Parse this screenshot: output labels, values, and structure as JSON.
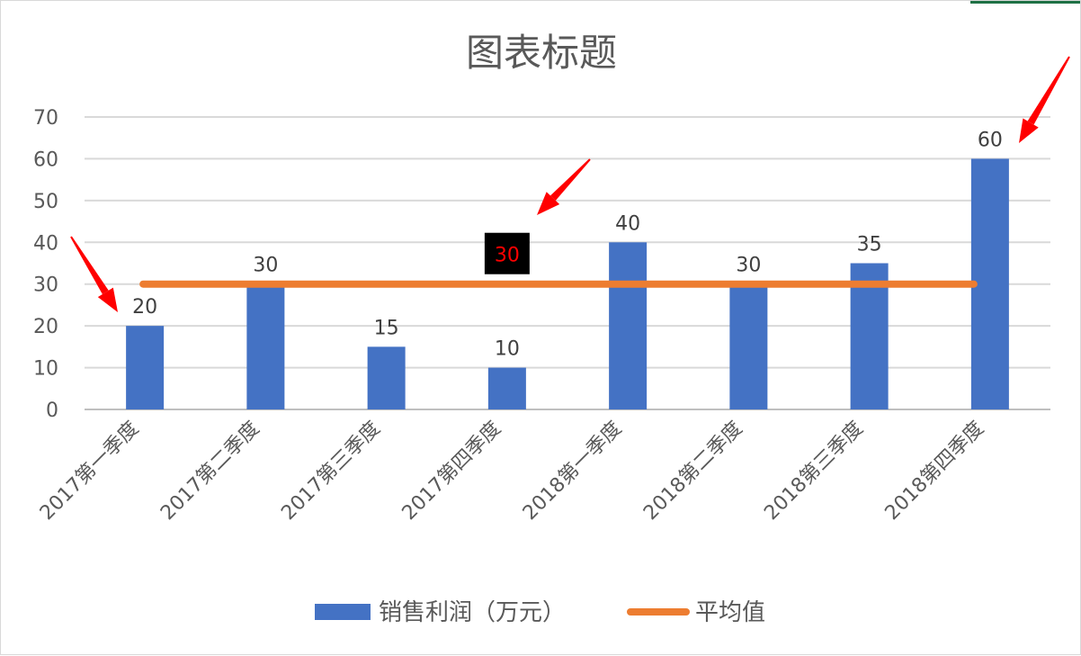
{
  "chart_data": {
    "type": "bar",
    "title": "图表标题",
    "categories": [
      "2017第一季度",
      "2017第二季度",
      "2017第三季度",
      "2017第四季度",
      "2018第一季度",
      "2018第二季度",
      "2018第三季度",
      "2018第四季度"
    ],
    "series": [
      {
        "name": "销售利润（万元）",
        "type": "bar",
        "color": "#4472c4",
        "values": [
          20,
          30,
          15,
          10,
          40,
          30,
          35,
          60
        ]
      },
      {
        "name": "平均值",
        "type": "line",
        "color": "#ed7d31",
        "values": [
          30,
          30,
          30,
          30,
          30,
          30,
          30,
          30
        ]
      }
    ],
    "data_labels": [
      "20",
      "30",
      "15",
      "10",
      "40",
      "30",
      "35",
      "60"
    ],
    "highlighted_label": {
      "category_index": 3,
      "text": "30",
      "text_color": "#ff0000",
      "background": "#000000"
    },
    "ylim": [
      0,
      70
    ],
    "yticks": [
      0,
      10,
      20,
      30,
      40,
      50,
      60,
      70
    ],
    "grid": true,
    "legend_position": "bottom",
    "annotations": [
      {
        "type": "arrow",
        "color": "#ff0000",
        "points_to_category_index": 0
      },
      {
        "type": "arrow",
        "color": "#ff0000",
        "points_to_category_index": 3
      },
      {
        "type": "arrow",
        "color": "#ff0000",
        "points_to_category_index": 7
      }
    ]
  }
}
